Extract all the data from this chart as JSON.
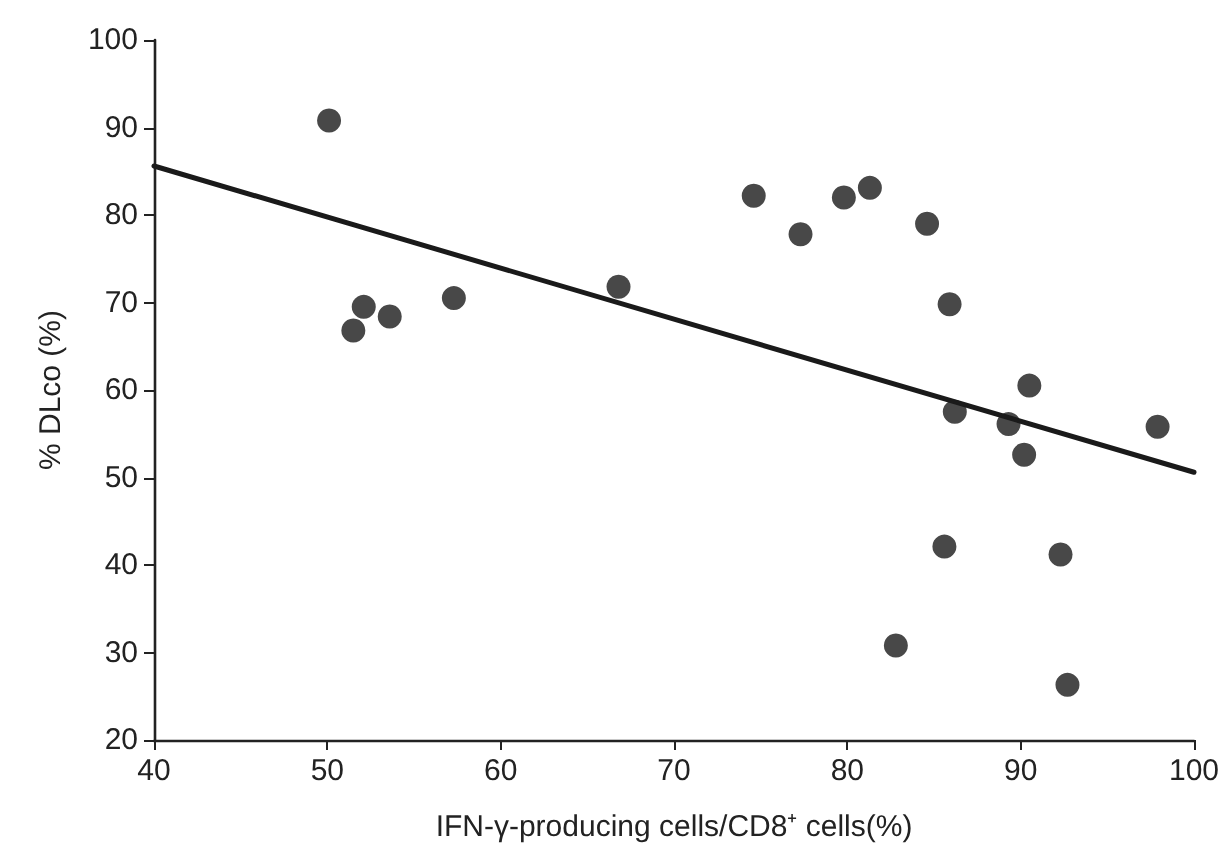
{
  "chart_data": {
    "type": "scatter",
    "xlabel": "IFN-γ-producing cells/CD8⁺ cells(%)",
    "ylabel": "% DLco (%)",
    "xlim": [
      40,
      100
    ],
    "xticks": [
      40,
      50,
      60,
      70,
      80,
      90,
      100
    ],
    "ylim": [
      20,
      100
    ],
    "yticks": [
      20,
      30,
      40,
      50,
      60,
      70,
      80,
      90,
      100
    ],
    "grid": false,
    "marker": "circle",
    "series": [
      {
        "color": "#1a1a1a",
        "x": [
          50.1,
          51.5,
          52.1,
          53.6,
          57.3,
          66.8,
          74.6,
          77.3,
          79.8,
          81.3,
          84.6,
          85.9,
          86.2,
          89.3,
          90.5,
          90.2,
          85.6,
          92.3,
          82.8,
          92.7,
          97.9
        ],
        "values": [
          90.8,
          66.8,
          69.5,
          68.4,
          70.5,
          71.8,
          82.2,
          77.8,
          82,
          83.1,
          79,
          69.8,
          57.5,
          56.1,
          60.5,
          52.6,
          42.1,
          41.2,
          30.8,
          26.3,
          55.8
        ]
      },
      {
        "type": "line",
        "color": "#1a1a1a",
        "line_style": "solid",
        "marker": "none",
        "x": [
          40,
          100
        ],
        "values": [
          85.6,
          50.6
        ]
      }
    ]
  }
}
